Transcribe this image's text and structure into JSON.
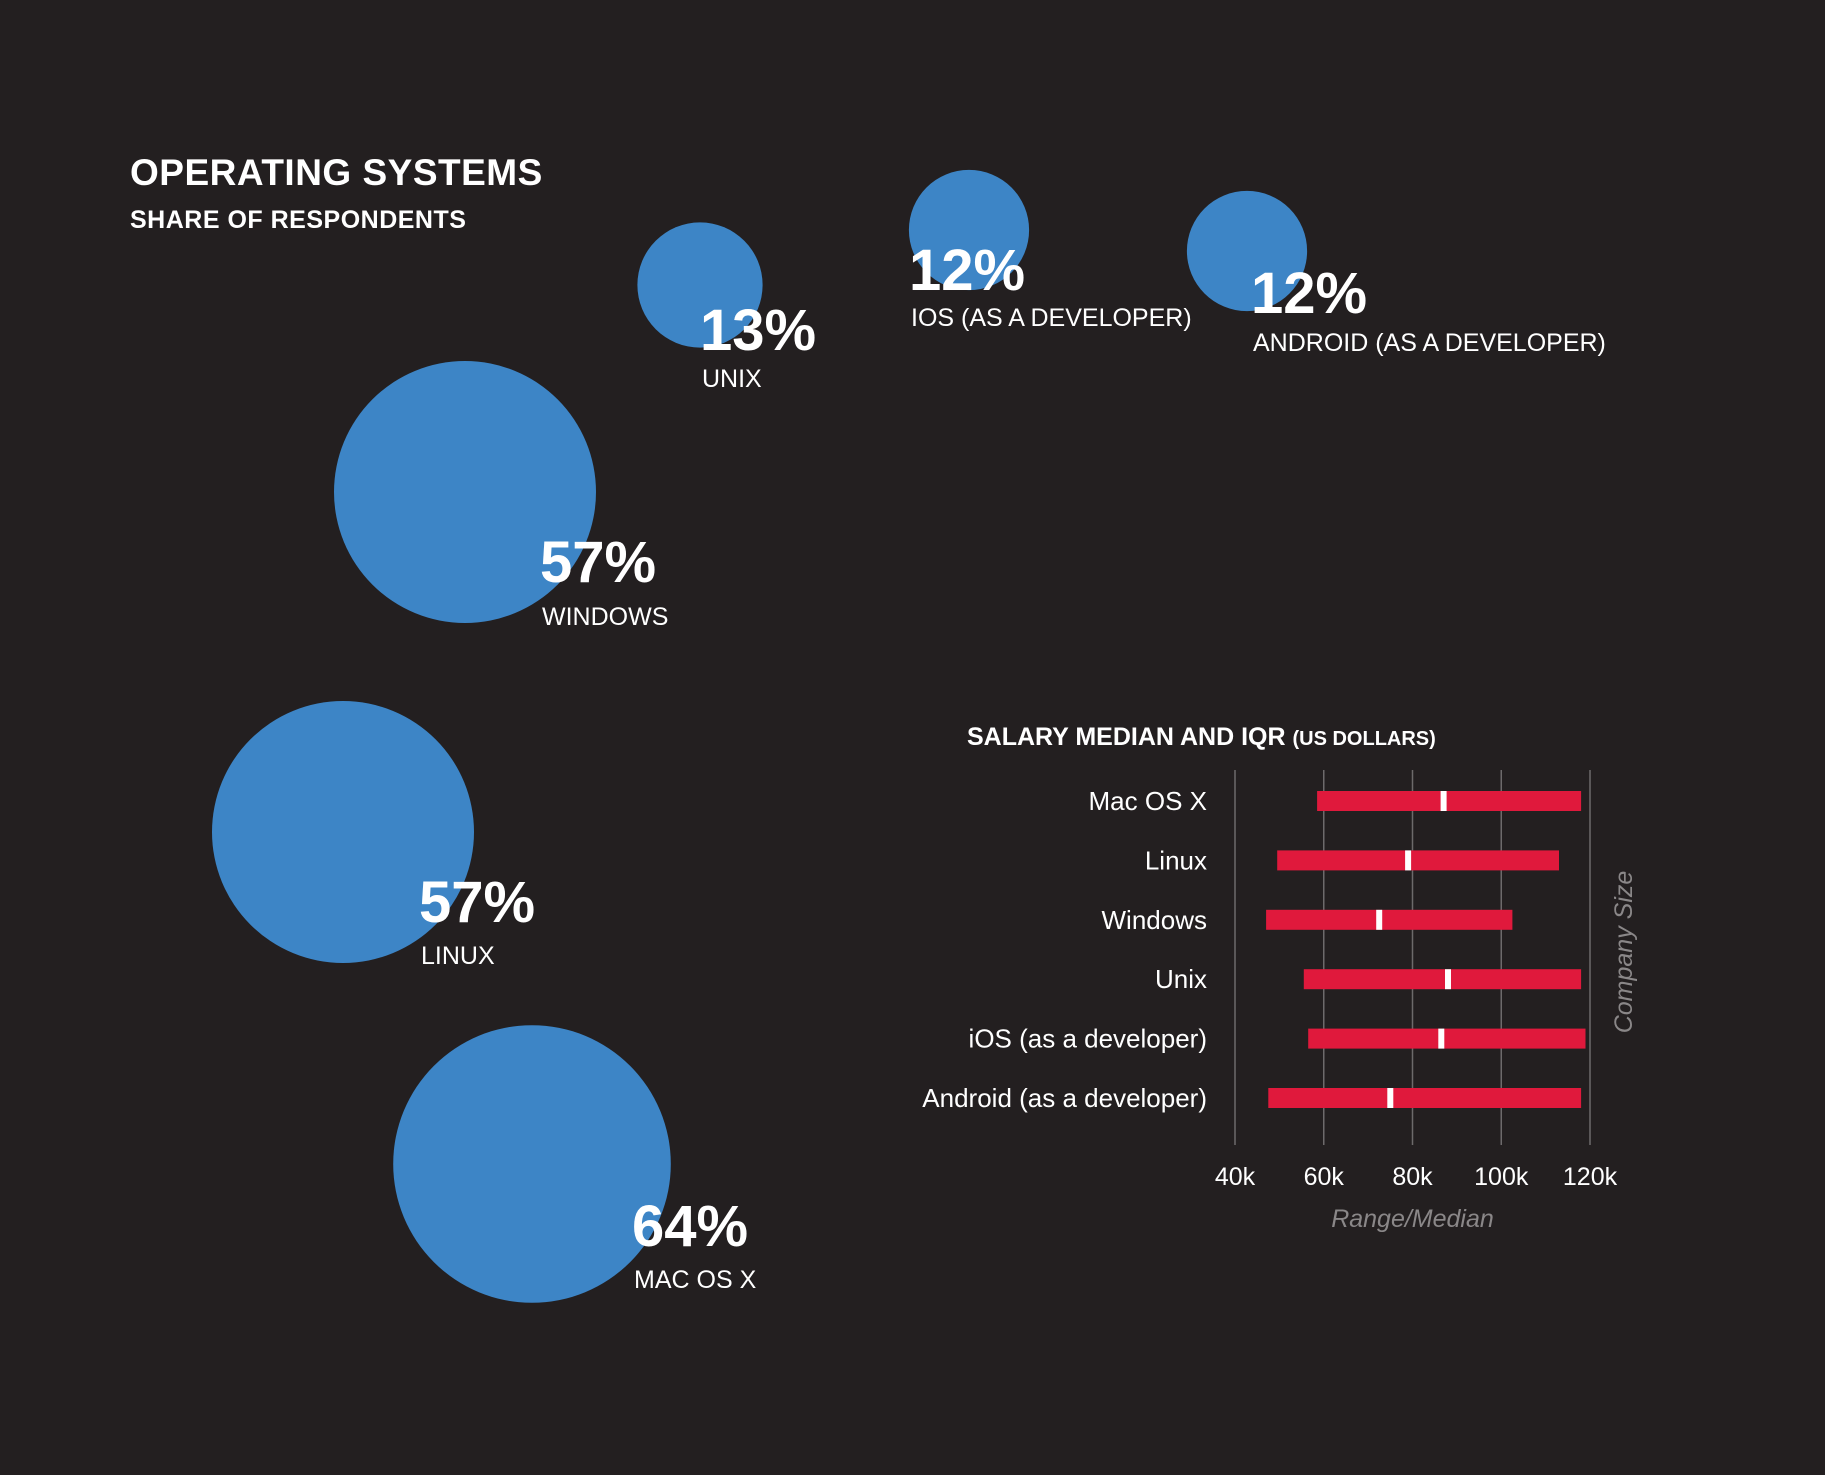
{
  "chart_data": [
    {
      "type": "bubble",
      "title": "OPERATING SYSTEMS",
      "subtitle": "SHARE OF RESPONDENTS",
      "unit": "%",
      "items": [
        {
          "label": "UNIX",
          "value": 13,
          "value_label": "13%"
        },
        {
          "label": "IOS (AS A DEVELOPER)",
          "value": 12,
          "value_label": "12%"
        },
        {
          "label": "ANDROID (AS A DEVELOPER)",
          "value": 12,
          "value_label": "12%"
        },
        {
          "label": "WINDOWS",
          "value": 57,
          "value_label": "57%"
        },
        {
          "label": "LINUX",
          "value": 57,
          "value_label": "57%"
        },
        {
          "label": "MAC OS X",
          "value": 64,
          "value_label": "64%"
        }
      ],
      "colors": {
        "bubble": "#3d85c6",
        "text": "#ffffff",
        "background": "#231f20"
      }
    },
    {
      "type": "range",
      "title": "SALARY MEDIAN AND IQR",
      "title_suffix": "(US DOLLARS)",
      "xlabel": "Range/Median",
      "ylabel": "Company Size",
      "xlim": [
        40000,
        120000
      ],
      "x_ticks": [
        40000,
        60000,
        80000,
        100000,
        120000
      ],
      "x_tick_labels": [
        "40k",
        "60k",
        "80k",
        "100k",
        "120k"
      ],
      "grid": true,
      "categories": [
        "Mac OS X",
        "Linux",
        "Windows",
        "Unix",
        "iOS (as a developer)",
        "Android (as a developer)"
      ],
      "q1": [
        58500,
        49500,
        47000,
        55500,
        56500,
        47500
      ],
      "median": [
        87000,
        79000,
        72500,
        88000,
        86500,
        75000
      ],
      "q3": [
        118000,
        113000,
        102500,
        118000,
        119000,
        118000
      ],
      "colors": {
        "bar": "#e0193c",
        "median": "#ffffff",
        "grid": "#6d6a6b",
        "axis_title": "#8a8788",
        "label": "#ffffff"
      }
    }
  ]
}
